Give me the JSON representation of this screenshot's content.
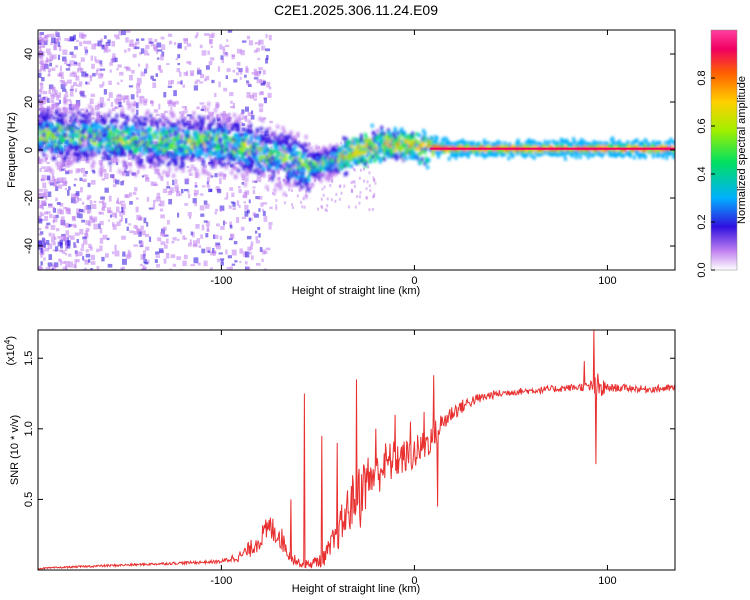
{
  "title": "C2E1.2025.306.11.24.E09",
  "chart_data": [
    {
      "type": "heatmap",
      "xlabel": "Height of straight line (km)",
      "ylabel": "Frequency (Hz)",
      "xlim": [
        -195,
        135
      ],
      "ylim": [
        -50,
        50
      ],
      "xticks": [
        -100,
        0,
        100
      ],
      "xtick_labels": [
        "-100",
        "0",
        "100"
      ],
      "yticks": [
        -40,
        -20,
        0,
        20,
        40
      ],
      "ytick_labels": [
        "-40",
        "-20",
        "0",
        "20",
        "40"
      ],
      "colorbar": {
        "label": "Normalized spectral amplitude",
        "range": [
          0,
          1
        ],
        "ticks": [
          0.0,
          0.2,
          0.4,
          0.6,
          0.8
        ],
        "tick_labels": [
          "0.0",
          "0.2",
          "0.4",
          "0.6",
          "0.8"
        ],
        "colors": [
          "#ffffff",
          "#c080f0",
          "#3010e0",
          "#00b0ff",
          "#00e060",
          "#a0f000",
          "#ffd000",
          "#ff6000",
          "#f00060",
          "#ff40a0"
        ]
      },
      "ridge": {
        "description_points_x": [
          -185,
          -160,
          -140,
          -120,
          -100,
          -90,
          -80,
          -70,
          -60,
          -55,
          -50,
          -45,
          -40,
          -35,
          -30,
          -25,
          -20,
          -15,
          -10,
          -5,
          0,
          5,
          10,
          20,
          40,
          60,
          80,
          100,
          120,
          135
        ],
        "description_points_y": [
          6,
          5,
          4,
          3,
          3,
          1,
          -1,
          -3,
          -5,
          -7,
          -6,
          -5,
          -4,
          -2,
          -1,
          0.5,
          1.5,
          2,
          2.5,
          2,
          1.5,
          1.5,
          1,
          0.5,
          0.5,
          0.5,
          0.5,
          0.5,
          0.5,
          0.5
        ]
      }
    },
    {
      "type": "line",
      "xlabel": "Height of straight line (km)",
      "ylabel": "SNR (10 * v/v)",
      "multiplier_label": "(x10",
      "multiplier_exp": "4",
      "xlim": [
        -195,
        135
      ],
      "ylim": [
        0,
        1.7
      ],
      "xticks": [
        -100,
        0,
        100
      ],
      "xtick_labels": [
        "-100",
        "0",
        "100"
      ],
      "yticks": [
        0.5,
        1.0,
        1.5
      ],
      "ytick_labels": [
        "0.5",
        "1.0",
        "1.5"
      ],
      "series": [
        {
          "name": "SNR",
          "color": "#e83030",
          "x": [
            -195,
            -180,
            -160,
            -140,
            -120,
            -100,
            -90,
            -85,
            -80,
            -75,
            -70,
            -65,
            -60,
            -55,
            -50,
            -45,
            -40,
            -35,
            -30,
            -25,
            -20,
            -15,
            -10,
            -5,
            0,
            5,
            10,
            15,
            20,
            30,
            40,
            50,
            60,
            70,
            80,
            90,
            95,
            100,
            110,
            120,
            135
          ],
          "y": [
            0.01,
            0.02,
            0.03,
            0.04,
            0.05,
            0.06,
            0.1,
            0.15,
            0.22,
            0.3,
            0.25,
            0.12,
            0.05,
            0.04,
            0.06,
            0.12,
            0.25,
            0.4,
            0.55,
            0.62,
            0.7,
            0.75,
            0.78,
            0.8,
            0.82,
            0.88,
            0.95,
            1.05,
            1.12,
            1.2,
            1.24,
            1.26,
            1.27,
            1.28,
            1.29,
            1.3,
            1.28,
            1.29,
            1.29,
            1.28,
            1.29
          ],
          "noise": [
            0.005,
            0.006,
            0.008,
            0.008,
            0.01,
            0.012,
            0.04,
            0.06,
            0.08,
            0.1,
            0.09,
            0.06,
            0.03,
            0.03,
            0.05,
            0.08,
            0.12,
            0.18,
            0.2,
            0.2,
            0.18,
            0.16,
            0.14,
            0.12,
            0.12,
            0.12,
            0.1,
            0.08,
            0.06,
            0.04,
            0.03,
            0.025,
            0.025,
            0.025,
            0.025,
            0.03,
            0.12,
            0.03,
            0.025,
            0.025,
            0.025
          ]
        }
      ],
      "spikes": [
        {
          "x": -64,
          "y": 0.5
        },
        {
          "x": -57,
          "y": 1.25
        },
        {
          "x": -48,
          "y": 0.95
        },
        {
          "x": -40,
          "y": 0.9
        },
        {
          "x": -30,
          "y": 1.35
        },
        {
          "x": -28,
          "y": 0.3
        },
        {
          "x": -20,
          "y": 1.0
        },
        {
          "x": -10,
          "y": 1.1
        },
        {
          "x": -2,
          "y": 1.05
        },
        {
          "x": 5,
          "y": 1.12
        },
        {
          "x": 10,
          "y": 1.38
        },
        {
          "x": 12,
          "y": 0.45
        },
        {
          "x": 88,
          "y": 1.48
        },
        {
          "x": 93,
          "y": 1.7
        },
        {
          "x": 94,
          "y": 0.75
        }
      ]
    }
  ]
}
